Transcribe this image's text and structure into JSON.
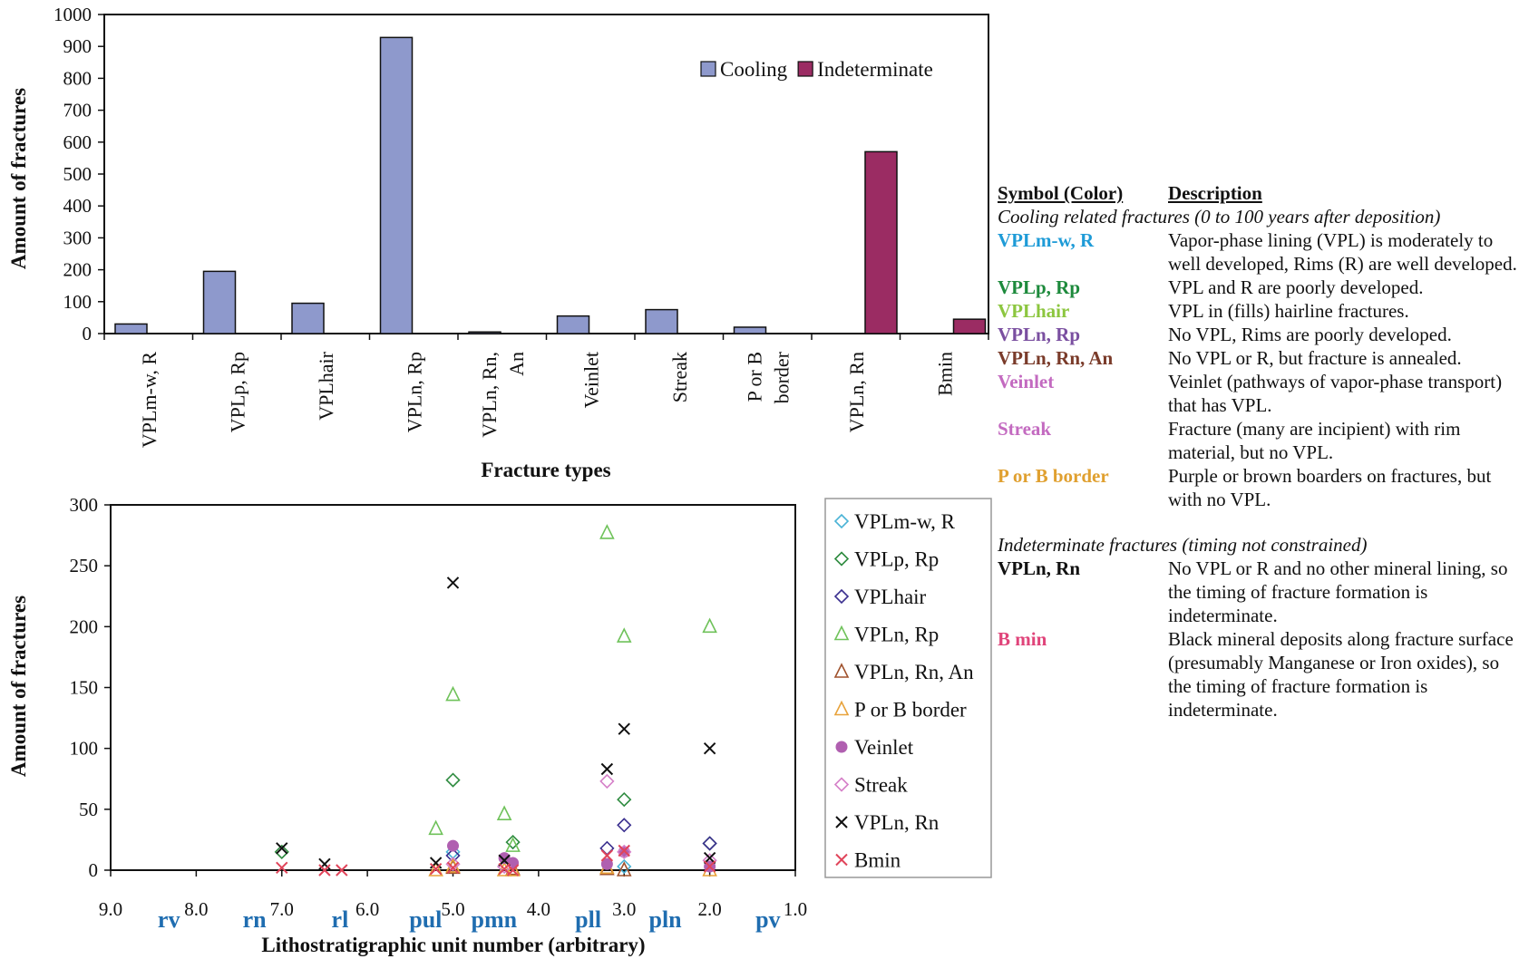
{
  "chart_data": [
    {
      "type": "bar",
      "xlabel": "Fracture types",
      "ylabel": "Amount of fractures",
      "ylim": [
        0,
        1000
      ],
      "yticks": [
        0,
        100,
        200,
        300,
        400,
        500,
        600,
        700,
        800,
        900,
        1000
      ],
      "categories": [
        "VPLm-w, R",
        "VPLp, Rp",
        "VPLhair",
        "VPLn, Rp",
        "VPLn, Rn, An",
        "Veinlet",
        "Streak",
        "P or B border",
        "VPLn, Rn",
        "Bmin"
      ],
      "category_lines": [
        [
          "VPLm-w, R"
        ],
        [
          "VPLp, Rp"
        ],
        [
          "VPLhair"
        ],
        [
          "VPLn, Rp"
        ],
        [
          "VPLn, Rn,",
          "An"
        ],
        [
          "Veinlet"
        ],
        [
          "Streak"
        ],
        [
          "P or B",
          "border"
        ],
        [
          "VPLn, Rn"
        ],
        [
          "Bmin"
        ]
      ],
      "series": [
        {
          "name": "Cooling",
          "color": "#8e99cc",
          "values": [
            30,
            195,
            95,
            928,
            5,
            55,
            75,
            20,
            0,
            0
          ]
        },
        {
          "name": "Indeterminate",
          "color": "#9b2c63",
          "values": [
            0,
            0,
            0,
            0,
            0,
            0,
            0,
            0,
            570,
            45
          ]
        }
      ],
      "legend_position": "top-right",
      "grid": false
    },
    {
      "type": "scatter",
      "xlabel": "Lithostratigraphic unit number (arbitrary)",
      "ylabel": "Amount of fractures",
      "xlim": [
        9.0,
        1.0
      ],
      "ylim": [
        0,
        300
      ],
      "xticks": [
        "9.0",
        "8.0",
        "7.0",
        "6.0",
        "5.0",
        "4.0",
        "3.0",
        "2.0",
        "1.0"
      ],
      "yticks": [
        0,
        50,
        100,
        150,
        200,
        250,
        300
      ],
      "unit_labels": [
        {
          "label": "rv",
          "x": 8.5
        },
        {
          "label": "rn",
          "x": 7.5
        },
        {
          "label": "rl",
          "x": 6.5
        },
        {
          "label": "pul",
          "x": 5.5
        },
        {
          "label": "pmn",
          "x": 4.7
        },
        {
          "label": "pll",
          "x": 3.6
        },
        {
          "label": "pln",
          "x": 2.7
        },
        {
          "label": "pv",
          "x": 1.5
        }
      ],
      "legend_position": "right",
      "grid": false,
      "series": [
        {
          "name": "VPLm-w, R",
          "marker": "diamond",
          "color": "#4ab3d6",
          "points": [
            [
              5.0,
              15
            ],
            [
              3.0,
              3
            ]
          ]
        },
        {
          "name": "VPLp, Rp",
          "marker": "diamond",
          "color": "#2e8b3f",
          "points": [
            [
              7.0,
              15
            ],
            [
              5.0,
              74
            ],
            [
              4.3,
              23
            ],
            [
              3.0,
              58
            ],
            [
              2.0,
              22
            ]
          ]
        },
        {
          "name": "VPLhair",
          "marker": "diamond",
          "color": "#3a2f8f",
          "points": [
            [
              5.0,
              12
            ],
            [
              3.2,
              18
            ],
            [
              3.0,
              37
            ],
            [
              2.0,
              22
            ]
          ]
        },
        {
          "name": "VPLn, Rp",
          "marker": "triangle",
          "color": "#6fc25a",
          "points": [
            [
              5.2,
              34
            ],
            [
              5.0,
              144
            ],
            [
              4.4,
              46
            ],
            [
              4.3,
              20
            ],
            [
              3.2,
              277
            ],
            [
              3.0,
              192
            ],
            [
              2.0,
              200
            ]
          ]
        },
        {
          "name": "VPLn, Rn, An",
          "marker": "triangle",
          "color": "#a0522d",
          "points": [
            [
              5.0,
              2
            ],
            [
              4.3,
              1
            ],
            [
              3.2,
              1
            ],
            [
              3.0,
              0
            ]
          ]
        },
        {
          "name": "P or B border",
          "marker": "triangle",
          "color": "#e8a23a",
          "points": [
            [
              5.2,
              0
            ],
            [
              5.0,
              3
            ],
            [
              4.4,
              0
            ],
            [
              4.3,
              0
            ],
            [
              3.2,
              2
            ],
            [
              2.0,
              0
            ]
          ]
        },
        {
          "name": "Veinlet",
          "marker": "circle",
          "color": "#b05fb0",
          "points": [
            [
              5.0,
              20
            ],
            [
              4.4,
              10
            ],
            [
              4.3,
              6
            ],
            [
              3.2,
              5
            ],
            [
              3.0,
              15
            ],
            [
              2.0,
              3
            ]
          ]
        },
        {
          "name": "Streak",
          "marker": "diamond",
          "color": "#d580c8",
          "points": [
            [
              5.0,
              5
            ],
            [
              4.4,
              3
            ],
            [
              3.2,
              73
            ],
            [
              3.0,
              15
            ],
            [
              2.0,
              8
            ]
          ]
        },
        {
          "name": "VPLn, Rn",
          "marker": "x",
          "color": "#111111",
          "points": [
            [
              7.0,
              18
            ],
            [
              6.5,
              5
            ],
            [
              5.2,
              6
            ],
            [
              5.0,
              236
            ],
            [
              4.4,
              8
            ],
            [
              3.2,
              83
            ],
            [
              3.0,
              116
            ],
            [
              2.0,
              100
            ],
            [
              2.0,
              10
            ]
          ]
        },
        {
          "name": "Bmin",
          "marker": "x",
          "color": "#e0445a",
          "points": [
            [
              7.0,
              2
            ],
            [
              6.5,
              0
            ],
            [
              6.3,
              0
            ],
            [
              5.2,
              1
            ],
            [
              5.0,
              2
            ],
            [
              4.4,
              1
            ],
            [
              4.3,
              0
            ],
            [
              3.2,
              12
            ],
            [
              3.0,
              16
            ],
            [
              2.0,
              3
            ]
          ]
        }
      ]
    }
  ],
  "description_table": {
    "headers": [
      "Symbol (Color)",
      "Description"
    ],
    "section_cooling": "Cooling related fractures (0 to 100 years after deposition)",
    "section_indeterminate": "Indeterminate fractures (timing not constrained)",
    "cooling_rows": [
      {
        "symbol": "VPLm-w, R",
        "color": "#1e9bd7",
        "text": "Vapor-phase lining (VPL) is moderately to well developed, Rims (R) are well developed."
      },
      {
        "symbol": "VPLp, Rp",
        "color": "#1d8a3c",
        "text": "VPL and R are poorly developed."
      },
      {
        "symbol": "VPLhair",
        "color": "#8cc63f",
        "text": "VPL in (fills) hairline fractures."
      },
      {
        "symbol": "VPLn, Rp",
        "color": "#7a4fa0",
        "text": "No VPL, Rims are poorly developed."
      },
      {
        "symbol": "VPLn, Rn, An",
        "color": "#7a3b2a",
        "text": "No VPL or R, but fracture is annealed."
      },
      {
        "symbol": "Veinlet",
        "color": "#c36ac0",
        "text": "Veinlet (pathways of vapor-phase transport) that has VPL."
      },
      {
        "symbol": "Streak",
        "color": "#c36ac0",
        "text": "Fracture (many are incipient) with rim material, but no VPL."
      },
      {
        "symbol": "P or B border",
        "color": "#e0a030",
        "text": "Purple or brown boarders on fractures, but with no VPL."
      }
    ],
    "indeterminate_rows": [
      {
        "symbol": "VPLn, Rn",
        "color": "#111111",
        "text": "No VPL or R and no other mineral lining, so the timing of fracture formation is indeterminate."
      },
      {
        "symbol": "B min",
        "color": "#e0447a",
        "text": "Black mineral deposits along fracture surface (presumably Manganese or Iron oxides), so the timing of fracture formation is indeterminate."
      }
    ]
  }
}
